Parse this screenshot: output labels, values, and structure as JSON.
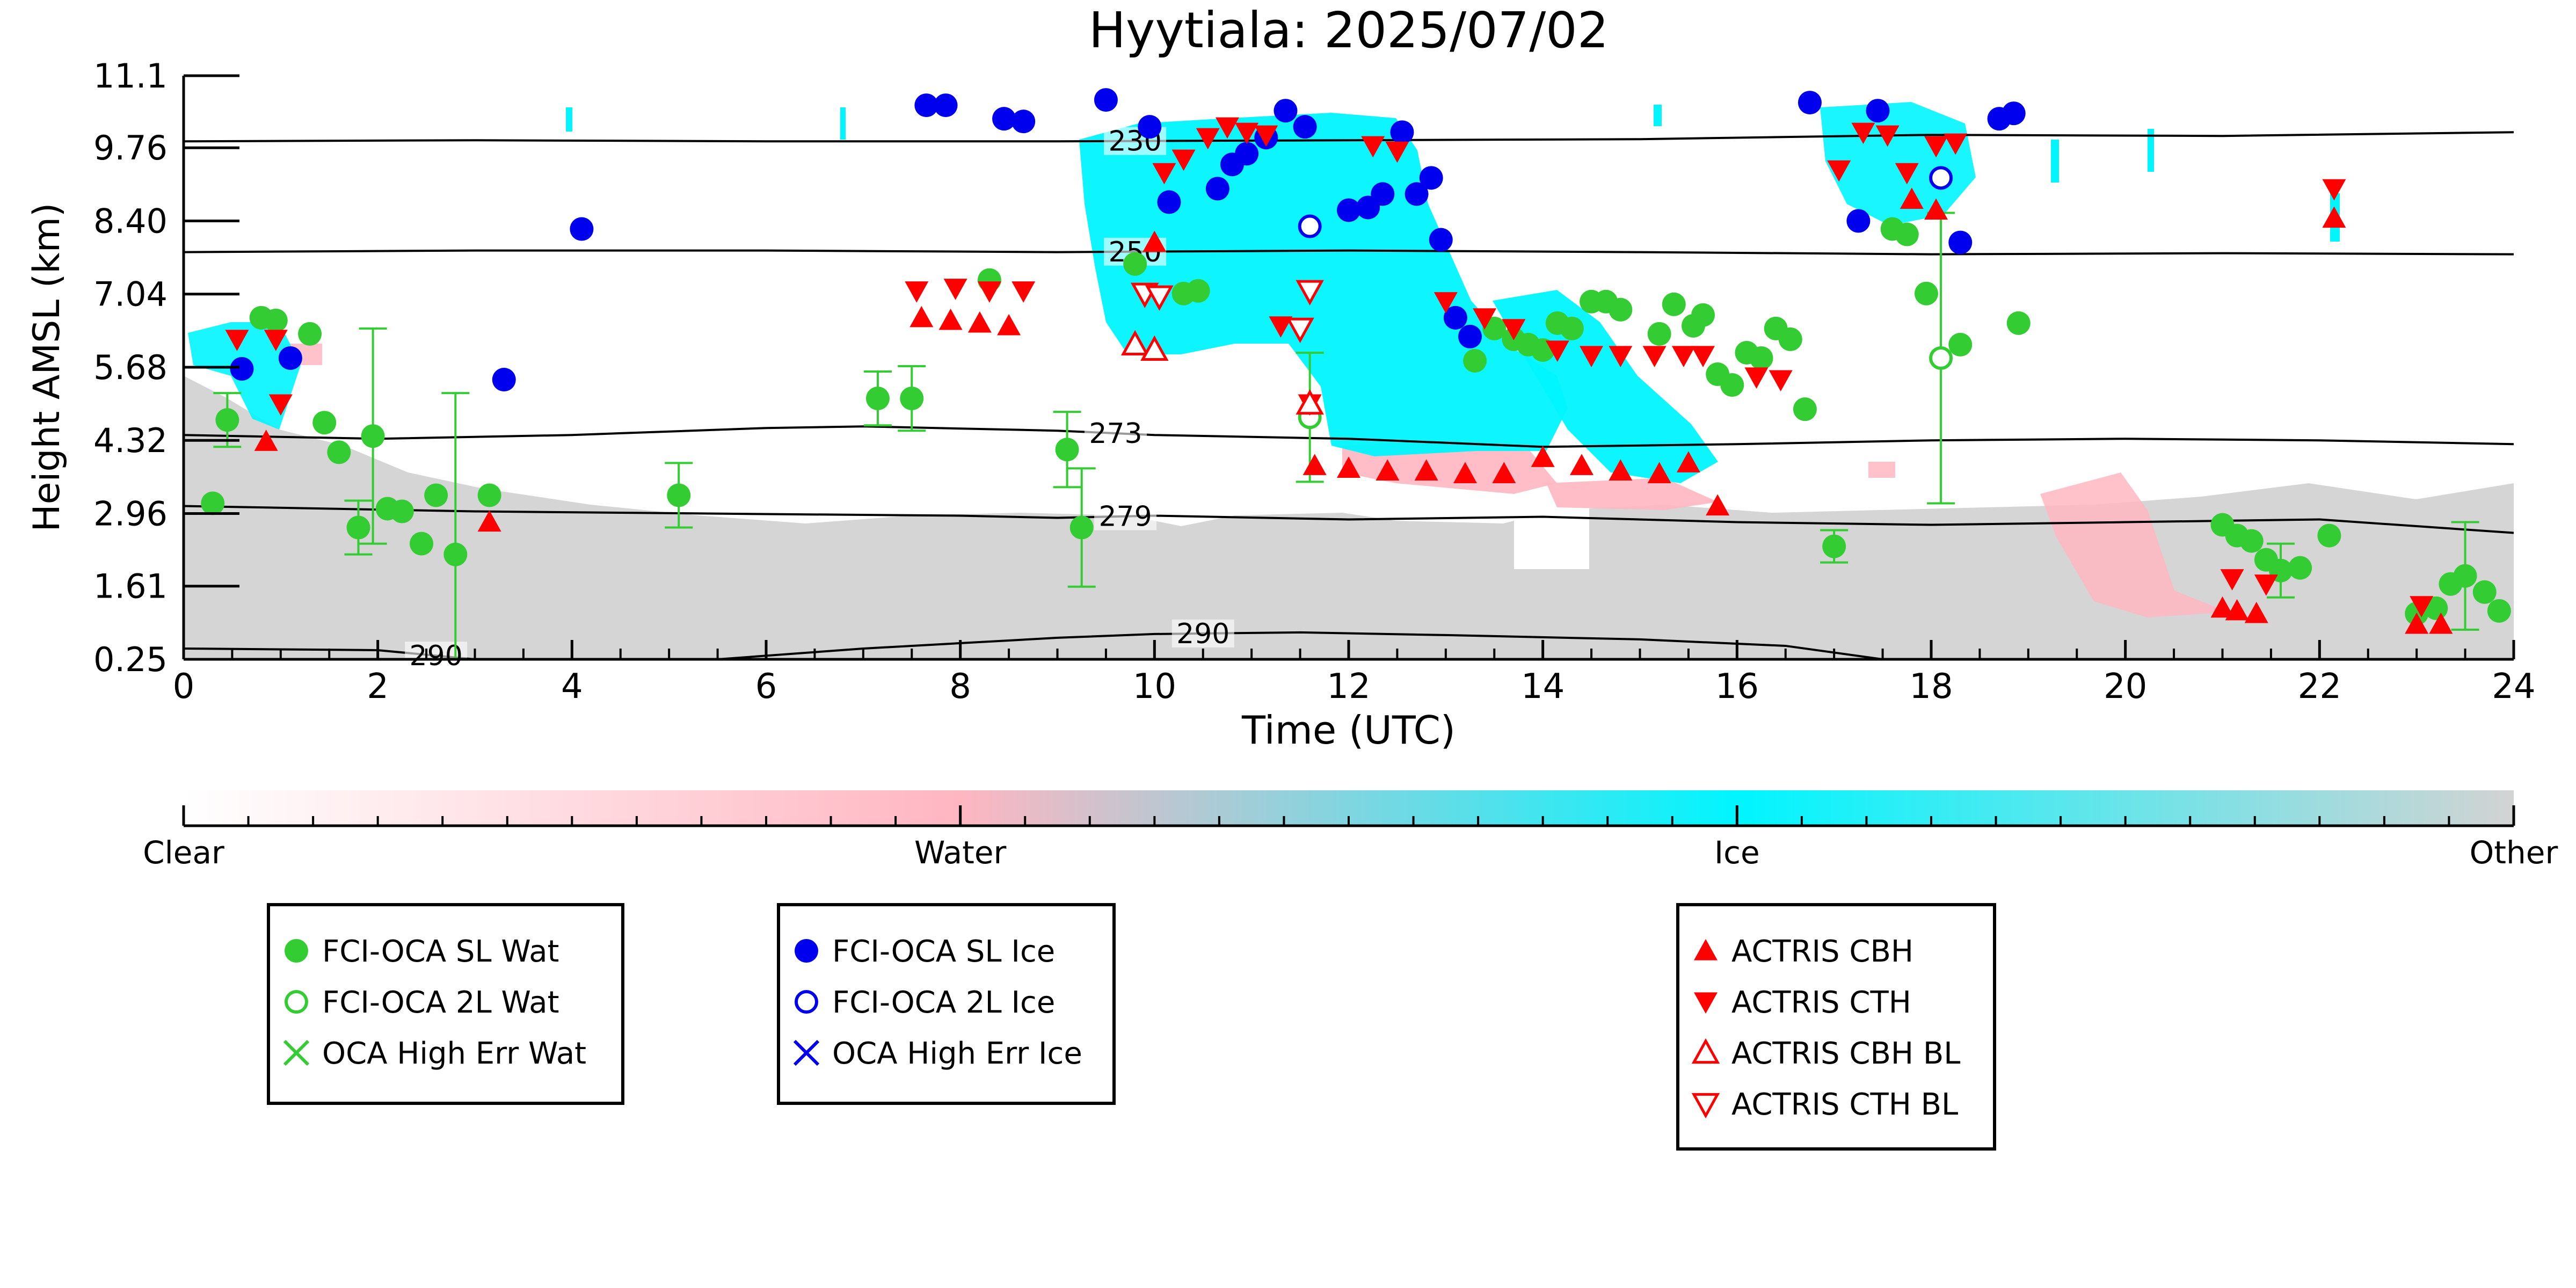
{
  "chart_data": {
    "type": "scatter",
    "title": "Hyytiala: 2025/07/02",
    "xlabel": "Time (UTC)",
    "ylabel": "Height AMSL (km)",
    "xlim": [
      0,
      24
    ],
    "ylim": [
      0.25,
      11.1
    ],
    "x_ticks": [
      "0",
      "2",
      "4",
      "6",
      "8",
      "10",
      "12",
      "14",
      "16",
      "18",
      "20",
      "22",
      "24"
    ],
    "y_ticks": [
      "0.25",
      "1.61",
      "2.96",
      "4.32",
      "5.68",
      "7.04",
      "8.40",
      "9.76",
      "11.1"
    ],
    "colorbar": {
      "labels": [
        "Clear",
        "Water",
        "Ice",
        "Other"
      ],
      "colors": [
        "#ffffff",
        "#ffb6c1",
        "#00f5ff",
        "#d3d3d3"
      ]
    },
    "legend_groups": [
      {
        "entries": [
          {
            "label": "FCI-OCA SL Wat",
            "marker": "filled-circle",
            "color": "#33cc33"
          },
          {
            "label": "FCI-OCA 2L Wat",
            "marker": "open-circle",
            "color": "#33cc33"
          },
          {
            "label": "OCA High Err Wat",
            "marker": "x",
            "color": "#33cc33"
          }
        ]
      },
      {
        "entries": [
          {
            "label": "FCI-OCA SL Ice",
            "marker": "filled-circle",
            "color": "#0000ee"
          },
          {
            "label": "FCI-OCA 2L Ice",
            "marker": "open-circle",
            "color": "#0000ee"
          },
          {
            "label": "OCA High Err Ice",
            "marker": "x",
            "color": "#0000ee"
          }
        ]
      },
      {
        "entries": [
          {
            "label": "ACTRIS CBH",
            "marker": "triangle-up",
            "color": "#ff0000"
          },
          {
            "label": "ACTRIS CTH",
            "marker": "triangle-down",
            "color": "#ff0000"
          },
          {
            "label": "ACTRIS CBH BL",
            "marker": "open-triangle-up",
            "color": "#ff0000"
          },
          {
            "label": "ACTRIS CTH BL",
            "marker": "open-triangle-down",
            "color": "#ff0000"
          }
        ]
      }
    ],
    "contours": [
      {
        "label": "230",
        "label_x": 9.8,
        "points": [
          [
            0,
            9.88
          ],
          [
            3,
            9.9
          ],
          [
            6,
            9.88
          ],
          [
            9,
            9.88
          ],
          [
            12,
            9.9
          ],
          [
            15,
            9.92
          ],
          [
            18,
            10.0
          ],
          [
            21,
            9.98
          ],
          [
            24,
            10.05
          ]
        ]
      },
      {
        "label": "250",
        "label_x": 9.8,
        "points": [
          [
            0,
            7.82
          ],
          [
            3,
            7.85
          ],
          [
            6,
            7.85
          ],
          [
            9,
            7.82
          ],
          [
            12,
            7.85
          ],
          [
            15,
            7.82
          ],
          [
            18,
            7.78
          ],
          [
            21,
            7.8
          ],
          [
            24,
            7.78
          ]
        ]
      },
      {
        "label": "273",
        "label_x": 9.6,
        "points": [
          [
            0,
            4.42
          ],
          [
            2,
            4.35
          ],
          [
            4,
            4.42
          ],
          [
            6,
            4.55
          ],
          [
            7,
            4.58
          ],
          [
            9,
            4.5
          ],
          [
            10,
            4.42
          ],
          [
            12,
            4.35
          ],
          [
            14,
            4.2
          ],
          [
            16,
            4.25
          ],
          [
            18,
            4.32
          ],
          [
            20,
            4.35
          ],
          [
            22,
            4.32
          ],
          [
            24,
            4.25
          ]
        ]
      },
      {
        "label": "279",
        "label_x": 9.7,
        "points": [
          [
            0,
            3.1
          ],
          [
            3,
            3.0
          ],
          [
            6,
            2.95
          ],
          [
            8,
            2.92
          ],
          [
            9,
            2.88
          ],
          [
            10,
            2.92
          ],
          [
            12,
            2.85
          ],
          [
            14,
            2.9
          ],
          [
            16,
            2.8
          ],
          [
            18,
            2.75
          ],
          [
            20,
            2.8
          ],
          [
            22,
            2.85
          ],
          [
            24,
            2.6
          ]
        ]
      },
      {
        "label": "290",
        "label_x": 2.6,
        "points": [
          [
            0,
            0.45
          ],
          [
            2,
            0.42
          ],
          [
            3,
            0.25
          ]
        ]
      },
      {
        "label": "290",
        "label_x": 10.5,
        "points": [
          [
            5.5,
            0.25
          ],
          [
            7,
            0.45
          ],
          [
            9,
            0.65
          ],
          [
            10,
            0.72
          ],
          [
            11.5,
            0.75
          ],
          [
            13,
            0.7
          ],
          [
            15,
            0.62
          ],
          [
            16.5,
            0.5
          ],
          [
            17.5,
            0.25
          ]
        ]
      }
    ],
    "series": [
      {
        "name": "FCI-OCA SL Wat",
        "color": "#33cc33",
        "marker": "filled-circle",
        "points": [
          {
            "x": 0.3,
            "y": 3.15
          },
          {
            "x": 0.45,
            "y": 4.7,
            "err": 0.5
          },
          {
            "x": 0.8,
            "y": 6.6
          },
          {
            "x": 0.95,
            "y": 6.55
          },
          {
            "x": 1.3,
            "y": 6.3
          },
          {
            "x": 1.45,
            "y": 4.65
          },
          {
            "x": 1.6,
            "y": 4.1
          },
          {
            "x": 1.8,
            "y": 2.7,
            "err": 0.5
          },
          {
            "x": 1.95,
            "y": 4.4,
            "err": 2.0
          },
          {
            "x": 2.1,
            "y": 3.05
          },
          {
            "x": 2.25,
            "y": 3.0
          },
          {
            "x": 2.45,
            "y": 2.4
          },
          {
            "x": 2.6,
            "y": 3.3
          },
          {
            "x": 2.8,
            "y": 2.2,
            "err": 3.0
          },
          {
            "x": 3.15,
            "y": 3.3
          },
          {
            "x": 5.1,
            "y": 3.3,
            "err": 0.6
          },
          {
            "x": 7.15,
            "y": 5.1,
            "err": 0.5
          },
          {
            "x": 7.5,
            "y": 5.1,
            "err": 0.6
          },
          {
            "x": 8.3,
            "y": 7.3
          },
          {
            "x": 9.1,
            "y": 4.15,
            "err": 0.7
          },
          {
            "x": 9.25,
            "y": 2.7,
            "err": 1.1
          },
          {
            "x": 9.8,
            "y": 7.6
          },
          {
            "x": 10.3,
            "y": 7.05
          },
          {
            "x": 10.45,
            "y": 7.1
          },
          {
            "x": 13.3,
            "y": 5.8
          },
          {
            "x": 13.5,
            "y": 6.4
          },
          {
            "x": 13.7,
            "y": 6.2
          },
          {
            "x": 13.85,
            "y": 6.1
          },
          {
            "x": 14.0,
            "y": 6.0
          },
          {
            "x": 14.15,
            "y": 6.5
          },
          {
            "x": 14.3,
            "y": 6.4
          },
          {
            "x": 14.5,
            "y": 6.9
          },
          {
            "x": 14.65,
            "y": 6.9
          },
          {
            "x": 14.8,
            "y": 6.75
          },
          {
            "x": 15.2,
            "y": 6.3
          },
          {
            "x": 15.35,
            "y": 6.85
          },
          {
            "x": 15.55,
            "y": 6.45
          },
          {
            "x": 15.65,
            "y": 6.65
          },
          {
            "x": 15.8,
            "y": 5.55
          },
          {
            "x": 15.95,
            "y": 5.35
          },
          {
            "x": 16.1,
            "y": 5.95
          },
          {
            "x": 16.25,
            "y": 5.85
          },
          {
            "x": 16.4,
            "y": 6.4
          },
          {
            "x": 16.55,
            "y": 6.2
          },
          {
            "x": 16.7,
            "y": 4.9
          },
          {
            "x": 17.0,
            "y": 2.35,
            "err": 0.3
          },
          {
            "x": 17.6,
            "y": 8.25
          },
          {
            "x": 17.75,
            "y": 8.15
          },
          {
            "x": 17.95,
            "y": 7.05
          },
          {
            "x": 18.3,
            "y": 6.1
          },
          {
            "x": 18.9,
            "y": 6.5
          },
          {
            "x": 21.0,
            "y": 2.75
          },
          {
            "x": 21.15,
            "y": 2.55
          },
          {
            "x": 21.3,
            "y": 2.45
          },
          {
            "x": 21.45,
            "y": 2.1
          },
          {
            "x": 21.6,
            "y": 1.9,
            "err": 0.5
          },
          {
            "x": 21.8,
            "y": 1.95
          },
          {
            "x": 22.1,
            "y": 2.55
          },
          {
            "x": 23.0,
            "y": 1.1
          },
          {
            "x": 23.2,
            "y": 1.2
          },
          {
            "x": 23.35,
            "y": 1.65
          },
          {
            "x": 23.5,
            "y": 1.8,
            "err": 1.0
          },
          {
            "x": 23.7,
            "y": 1.5
          },
          {
            "x": 23.85,
            "y": 1.15
          }
        ]
      },
      {
        "name": "FCI-OCA 2L Wat",
        "color": "#33cc33",
        "marker": "open-circle",
        "points": [
          {
            "x": 11.6,
            "y": 4.75,
            "err": 1.2
          },
          {
            "x": 18.1,
            "y": 5.85,
            "err": 2.7
          }
        ]
      },
      {
        "name": "FCI-OCA SL Ice",
        "color": "#0000ee",
        "marker": "filled-circle",
        "points": [
          {
            "x": 0.6,
            "y": 5.65
          },
          {
            "x": 1.1,
            "y": 5.85
          },
          {
            "x": 3.3,
            "y": 5.45
          },
          {
            "x": 4.1,
            "y": 8.25
          },
          {
            "x": 7.65,
            "y": 10.55
          },
          {
            "x": 7.85,
            "y": 10.55
          },
          {
            "x": 8.45,
            "y": 10.3
          },
          {
            "x": 8.65,
            "y": 10.25
          },
          {
            "x": 9.5,
            "y": 10.65
          },
          {
            "x": 9.95,
            "y": 10.15
          },
          {
            "x": 10.15,
            "y": 8.75
          },
          {
            "x": 10.65,
            "y": 9.0
          },
          {
            "x": 10.8,
            "y": 9.45
          },
          {
            "x": 10.95,
            "y": 9.65
          },
          {
            "x": 11.15,
            "y": 9.95
          },
          {
            "x": 11.35,
            "y": 10.45
          },
          {
            "x": 11.55,
            "y": 10.15
          },
          {
            "x": 12.0,
            "y": 8.6
          },
          {
            "x": 12.2,
            "y": 8.65
          },
          {
            "x": 12.35,
            "y": 8.9
          },
          {
            "x": 12.55,
            "y": 10.05
          },
          {
            "x": 12.7,
            "y": 8.9
          },
          {
            "x": 12.85,
            "y": 9.2
          },
          {
            "x": 12.95,
            "y": 8.05
          },
          {
            "x": 13.1,
            "y": 6.6
          },
          {
            "x": 13.25,
            "y": 6.25
          },
          {
            "x": 16.75,
            "y": 10.6
          },
          {
            "x": 17.25,
            "y": 8.4
          },
          {
            "x": 17.45,
            "y": 10.45
          },
          {
            "x": 18.3,
            "y": 8.0
          },
          {
            "x": 18.7,
            "y": 10.3
          },
          {
            "x": 18.85,
            "y": 10.4
          }
        ]
      },
      {
        "name": "FCI-OCA 2L Ice",
        "color": "#0000ee",
        "marker": "open-circle",
        "points": [
          {
            "x": 11.6,
            "y": 8.3
          },
          {
            "x": 18.1,
            "y": 9.2
          }
        ]
      },
      {
        "name": "ACTRIS CBH",
        "color": "#ff0000",
        "marker": "triangle-up",
        "points": [
          {
            "x": 0.85,
            "y": 4.3
          },
          {
            "x": 3.15,
            "y": 2.8
          },
          {
            "x": 7.6,
            "y": 6.6
          },
          {
            "x": 7.9,
            "y": 6.55
          },
          {
            "x": 8.2,
            "y": 6.5
          },
          {
            "x": 8.5,
            "y": 6.45
          },
          {
            "x": 10.0,
            "y": 8.0
          },
          {
            "x": 11.65,
            "y": 3.85
          },
          {
            "x": 12.0,
            "y": 3.8
          },
          {
            "x": 12.4,
            "y": 3.75
          },
          {
            "x": 12.8,
            "y": 3.75
          },
          {
            "x": 13.2,
            "y": 3.7
          },
          {
            "x": 13.6,
            "y": 3.7
          },
          {
            "x": 14.0,
            "y": 4.0
          },
          {
            "x": 14.4,
            "y": 3.85
          },
          {
            "x": 14.8,
            "y": 3.75
          },
          {
            "x": 15.2,
            "y": 3.7
          },
          {
            "x": 15.5,
            "y": 3.9
          },
          {
            "x": 15.8,
            "y": 3.1
          },
          {
            "x": 17.8,
            "y": 8.8
          },
          {
            "x": 18.05,
            "y": 8.6
          },
          {
            "x": 22.15,
            "y": 8.45
          },
          {
            "x": 21.0,
            "y": 1.2
          },
          {
            "x": 21.15,
            "y": 1.15
          },
          {
            "x": 21.35,
            "y": 1.1
          },
          {
            "x": 23.0,
            "y": 0.9
          },
          {
            "x": 23.25,
            "y": 0.9
          }
        ]
      },
      {
        "name": "ACTRIS CTH",
        "color": "#ff0000",
        "marker": "triangle-down",
        "points": [
          {
            "x": 0.55,
            "y": 6.2
          },
          {
            "x": 0.95,
            "y": 6.2
          },
          {
            "x": 1.0,
            "y": 5.0
          },
          {
            "x": 7.55,
            "y": 7.1
          },
          {
            "x": 7.95,
            "y": 7.15
          },
          {
            "x": 8.3,
            "y": 7.1
          },
          {
            "x": 8.65,
            "y": 7.1
          },
          {
            "x": 10.1,
            "y": 9.3
          },
          {
            "x": 10.3,
            "y": 9.55
          },
          {
            "x": 10.55,
            "y": 9.95
          },
          {
            "x": 10.75,
            "y": 10.15
          },
          {
            "x": 10.95,
            "y": 10.05
          },
          {
            "x": 11.15,
            "y": 10.0
          },
          {
            "x": 11.3,
            "y": 6.45
          },
          {
            "x": 11.6,
            "y": 5.0
          },
          {
            "x": 12.25,
            "y": 9.8
          },
          {
            "x": 12.5,
            "y": 9.7
          },
          {
            "x": 13.0,
            "y": 6.9
          },
          {
            "x": 13.4,
            "y": 6.6
          },
          {
            "x": 13.7,
            "y": 6.4
          },
          {
            "x": 14.15,
            "y": 6.0
          },
          {
            "x": 14.5,
            "y": 5.9
          },
          {
            "x": 14.8,
            "y": 5.9
          },
          {
            "x": 15.15,
            "y": 5.9
          },
          {
            "x": 15.45,
            "y": 5.9
          },
          {
            "x": 15.65,
            "y": 5.9
          },
          {
            "x": 16.2,
            "y": 5.5
          },
          {
            "x": 16.45,
            "y": 5.45
          },
          {
            "x": 17.05,
            "y": 9.35
          },
          {
            "x": 17.3,
            "y": 10.05
          },
          {
            "x": 17.55,
            "y": 10.0
          },
          {
            "x": 17.75,
            "y": 9.3
          },
          {
            "x": 18.05,
            "y": 9.8
          },
          {
            "x": 18.25,
            "y": 9.85
          },
          {
            "x": 22.15,
            "y": 9.0
          },
          {
            "x": 21.1,
            "y": 1.75
          },
          {
            "x": 21.45,
            "y": 1.65
          },
          {
            "x": 23.05,
            "y": 1.25
          }
        ]
      },
      {
        "name": "ACTRIS CBH BL",
        "color": "#ff0000",
        "marker": "open-triangle-up",
        "points": [
          {
            "x": 9.8,
            "y": 6.1
          },
          {
            "x": 10.0,
            "y": 6.0
          },
          {
            "x": 11.6,
            "y": 5.0
          }
        ]
      },
      {
        "name": "ACTRIS CTH BL",
        "color": "#ff0000",
        "marker": "open-triangle-down",
        "points": [
          {
            "x": 9.9,
            "y": 7.05
          },
          {
            "x": 10.05,
            "y": 7.0
          },
          {
            "x": 11.5,
            "y": 6.4
          },
          {
            "x": 11.6,
            "y": 7.1
          }
        ]
      }
    ]
  }
}
